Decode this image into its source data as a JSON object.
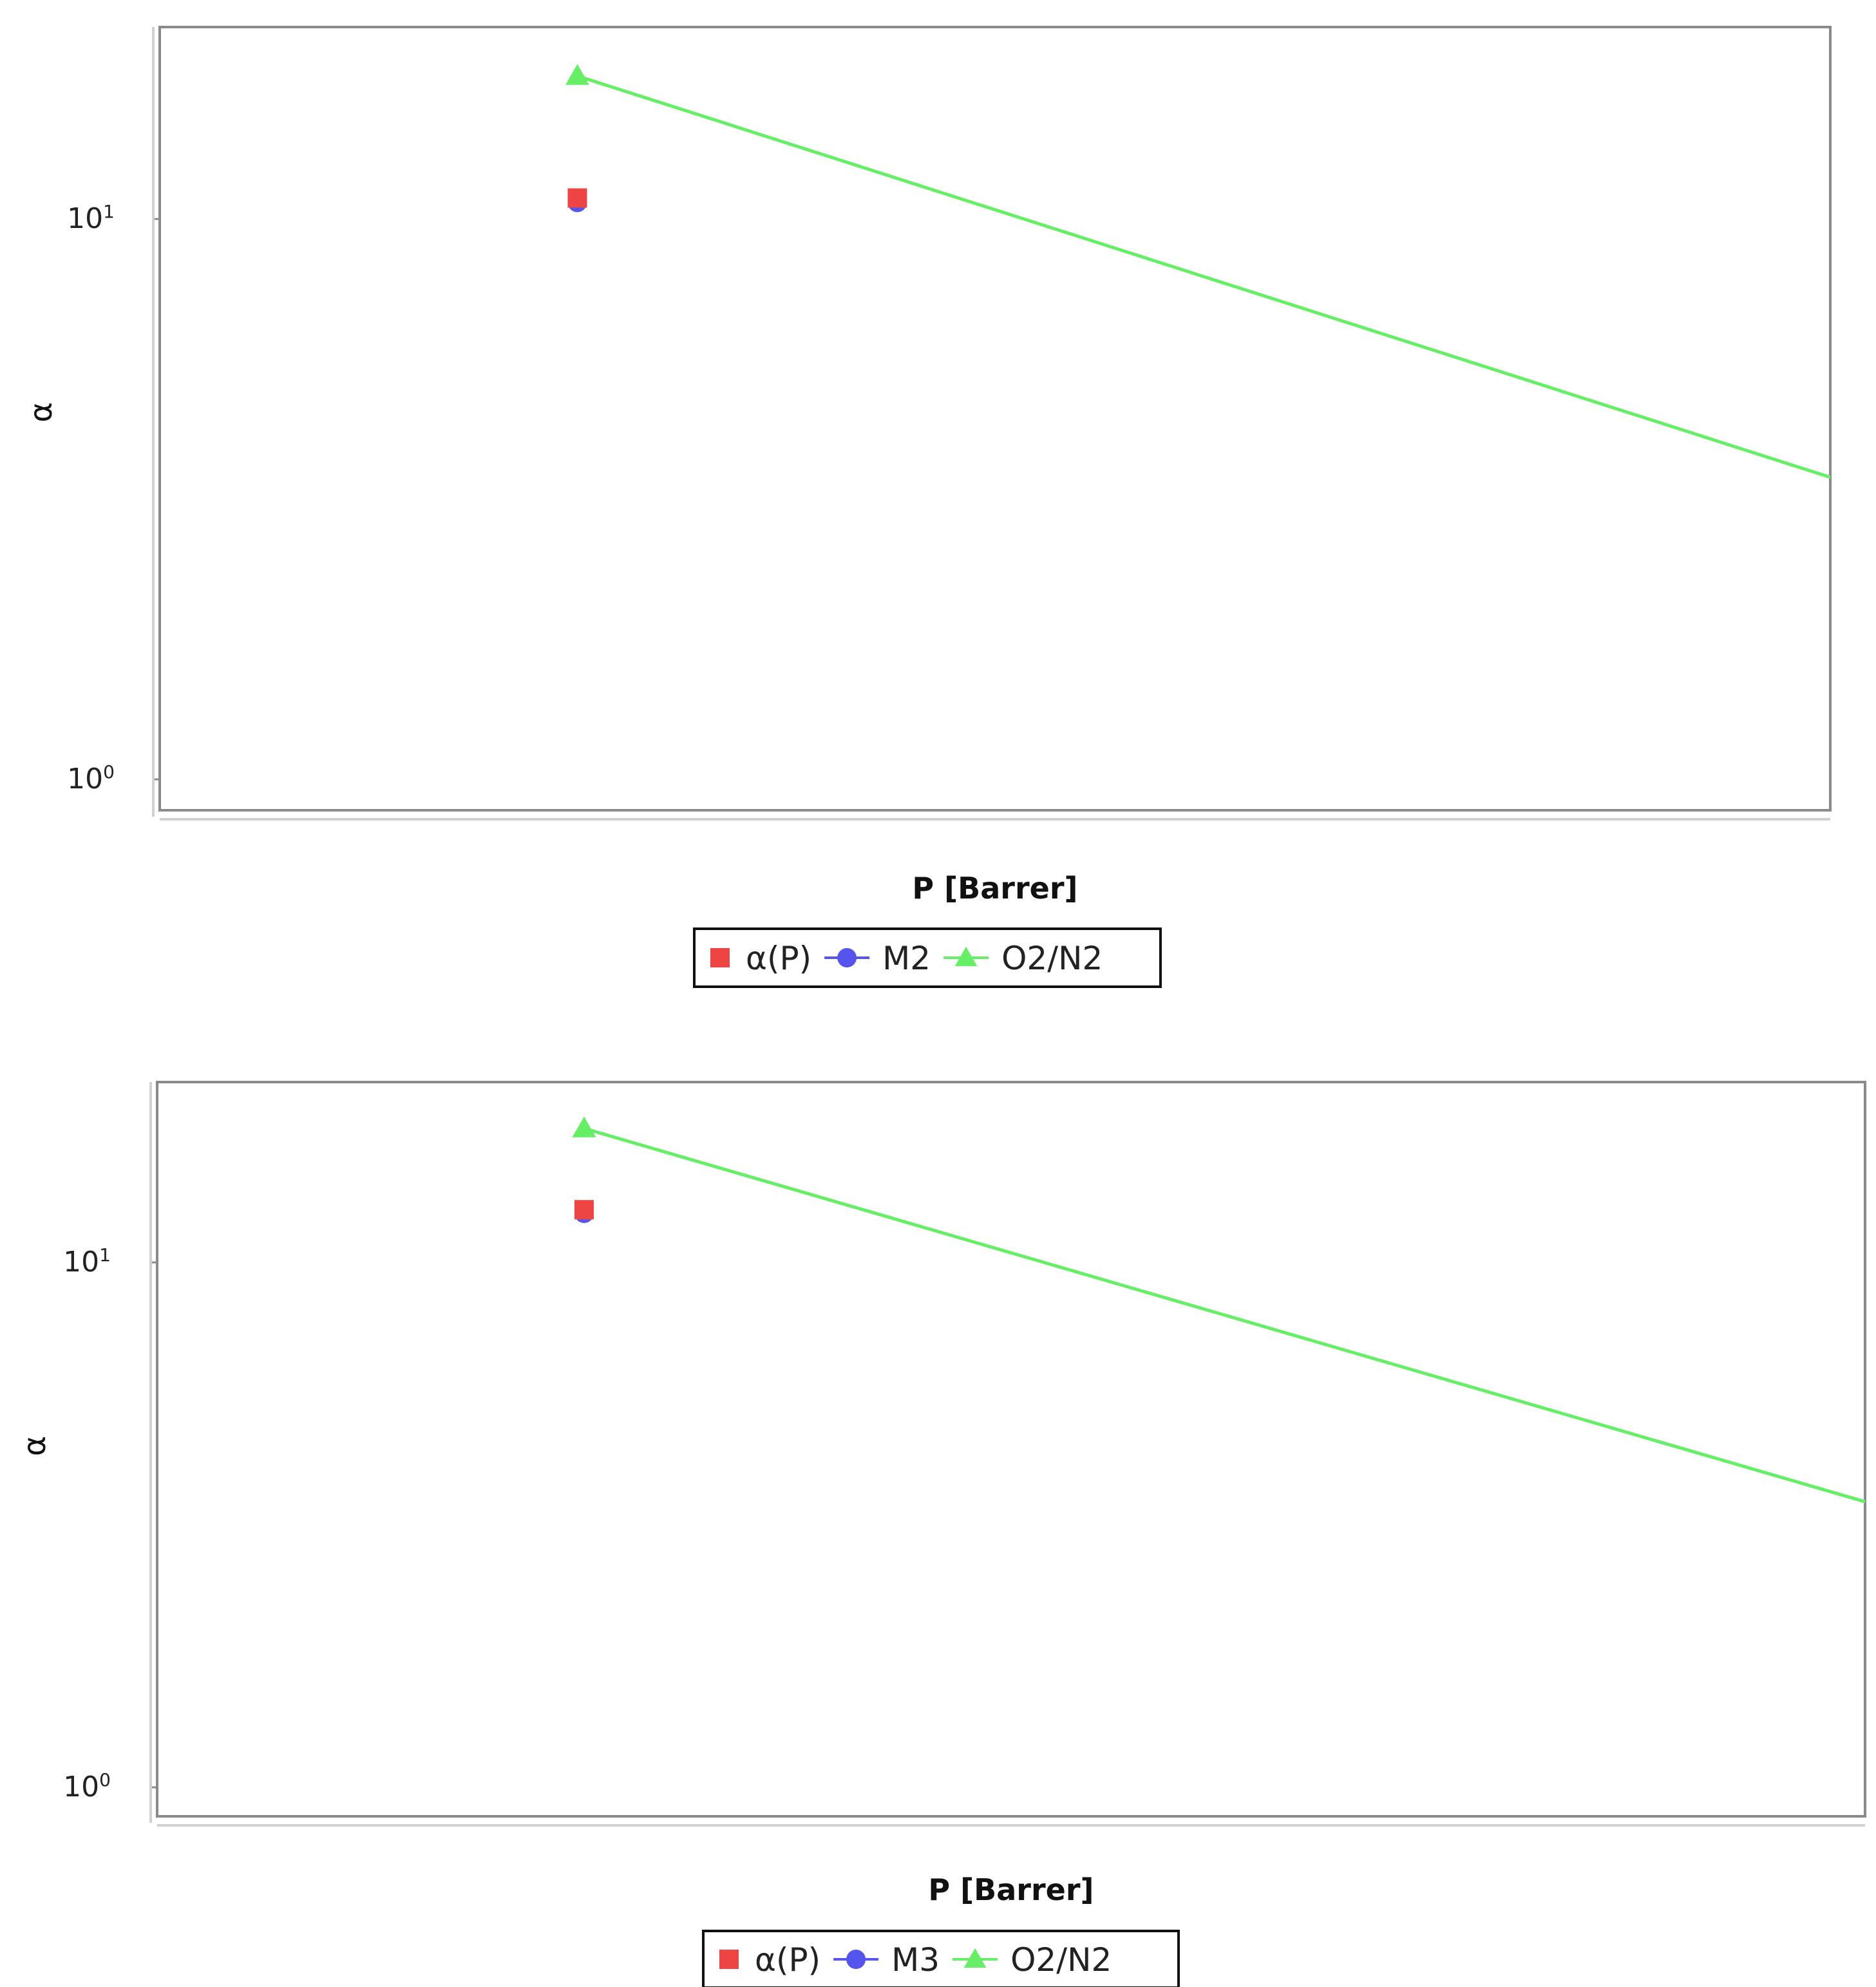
{
  "chart_data": [
    {
      "type": "scatter",
      "ylabel": "α",
      "xlabel": "P [Barrer]",
      "yscale": "log",
      "ylim": [
        1,
        25
      ],
      "yticks": [
        {
          "base": "10",
          "exp": "0",
          "value": 1
        },
        {
          "base": "10",
          "exp": "1",
          "value": 10
        }
      ],
      "grid": false,
      "legend_position": "bottom-center",
      "colors": {
        "alpha_p": "#ee4444",
        "membrane": "#5555ee",
        "upper_bound": "#66ee66"
      },
      "series": [
        {
          "name": "α(P)",
          "marker": "square",
          "color": "#ee4444",
          "points": [
            {
              "x": 0.25,
              "y": 10.9
            }
          ]
        },
        {
          "name": "M2",
          "marker": "circle",
          "color": "#5555ee",
          "points": [
            {
              "x": 0.25,
              "y": 10.7
            }
          ]
        },
        {
          "name": "O2/N2",
          "marker": "triangle",
          "color": "#66ee66",
          "line": true,
          "points": [
            {
              "x": 0.25,
              "y": 18.0
            },
            {
              "x": 1.0,
              "y": 3.46
            }
          ]
        }
      ]
    },
    {
      "type": "scatter",
      "ylabel": "α",
      "xlabel": "P [Barrer]",
      "yscale": "log",
      "ylim": [
        1,
        25
      ],
      "yticks": [
        {
          "base": "10",
          "exp": "0",
          "value": 1
        },
        {
          "base": "10",
          "exp": "1",
          "value": 10
        }
      ],
      "grid": false,
      "legend_position": "bottom-center",
      "colors": {
        "alpha_p": "#ee4444",
        "membrane": "#5555ee",
        "upper_bound": "#66ee66"
      },
      "series": [
        {
          "name": "α(P)",
          "marker": "square",
          "color": "#ee4444",
          "points": [
            {
              "x": 0.25,
              "y": 12.6
            }
          ]
        },
        {
          "name": "M3",
          "marker": "circle",
          "color": "#5555ee",
          "points": [
            {
              "x": 0.25,
              "y": 12.4
            }
          ]
        },
        {
          "name": "O2/N2",
          "marker": "triangle",
          "color": "#66ee66",
          "line": true,
          "points": [
            {
              "x": 0.25,
              "y": 18.0
            },
            {
              "x": 1.0,
              "y": 3.5
            }
          ]
        }
      ]
    }
  ]
}
